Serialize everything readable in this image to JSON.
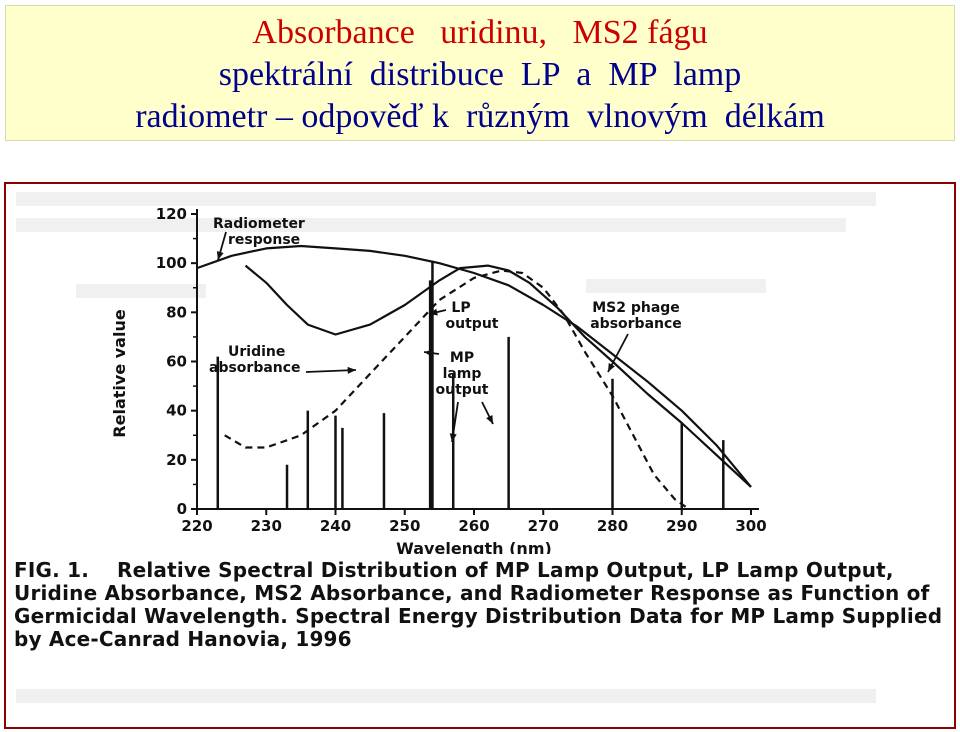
{
  "header": {
    "line1": "Absorbance   uridinu,   MS2 fágu",
    "line2": "spektrální  distribuce  LP  a  MP  lamp",
    "line3": "radiometr – odpověď k  různým  vlnovým  délkám"
  },
  "caption": {
    "label": "FIG. 1.",
    "text": "Relative Spectral Distribution of MP Lamp Output, LP Lamp Output, Uridine Absorbance, MS2 Absorbance, and Radiometer Response as Function of Germicidal Wavelength. Spectral Energy Distribution Data for MP Lamp Supplied by Ace-Canrad Hanovia, 1996"
  },
  "chart_data": {
    "type": "line",
    "xlabel": "Wavelength (nm)",
    "ylabel": "Relative value",
    "xlim": [
      220,
      300
    ],
    "ylim": [
      0,
      120
    ],
    "xticks": [
      220,
      230,
      240,
      250,
      260,
      270,
      280,
      290,
      300
    ],
    "yticks": [
      0,
      20,
      40,
      60,
      80,
      100,
      120
    ],
    "annotations": {
      "radiometer": "Radiometer response",
      "uridine": "Uridine absorbance",
      "lp": "LP output",
      "mp": "MP lamp output",
      "ms2": "MS2 phage absorbance"
    },
    "series": [
      {
        "key": "radiometer",
        "style": "solid",
        "x": [
          220,
          225,
          230,
          235,
          240,
          245,
          250,
          255,
          260,
          265,
          270,
          275,
          280,
          285,
          290,
          295,
          300
        ],
        "values": [
          98,
          103,
          106,
          107,
          106,
          105,
          103,
          100,
          96,
          91,
          83,
          74,
          63,
          52,
          40,
          26,
          9
        ]
      },
      {
        "key": "ms2",
        "style": "solid",
        "x": [
          227,
          230,
          233,
          236,
          240,
          245,
          250,
          255,
          258,
          262,
          265,
          268,
          272,
          276,
          280,
          285,
          290,
          295,
          300
        ],
        "values": [
          99,
          92,
          83,
          75,
          71,
          75,
          83,
          93,
          98,
          99,
          97,
          92,
          82,
          70,
          60,
          47,
          35,
          22,
          9
        ]
      },
      {
        "key": "uridine",
        "style": "dashed",
        "x": [
          224,
          227,
          230,
          235,
          240,
          245,
          250,
          255,
          260,
          264,
          267,
          270,
          273,
          276,
          280,
          283,
          286,
          289,
          291
        ],
        "values": [
          30,
          25,
          25,
          30,
          40,
          55,
          70,
          85,
          94,
          97,
          96,
          90,
          79,
          64,
          46,
          30,
          14,
          4,
          0
        ]
      },
      {
        "key": "mp",
        "style": "bars",
        "x": [
          223,
          233,
          236,
          240,
          241,
          247,
          254,
          257,
          265,
          280,
          290,
          296
        ],
        "values": [
          62,
          18,
          40,
          38,
          33,
          39,
          101,
          55,
          70,
          53,
          35,
          28
        ]
      },
      {
        "key": "lp",
        "style": "bars",
        "x": [
          253.7
        ],
        "values": [
          93
        ]
      }
    ]
  }
}
